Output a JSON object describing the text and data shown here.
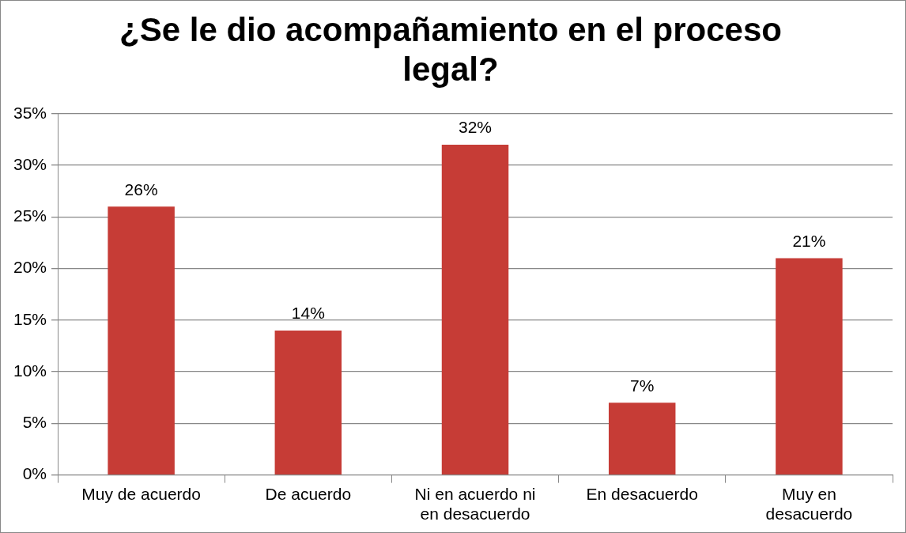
{
  "chart_data": {
    "type": "bar",
    "title": "¿Se le dio acompañamiento en el proceso legal?",
    "categories": [
      "Muy de acuerdo",
      "De acuerdo",
      "Ni en acuerdo ni en desacuerdo",
      "En desacuerdo",
      "Muy en desacuerdo"
    ],
    "values": [
      26,
      14,
      32,
      7,
      21
    ],
    "color": "#c63c36",
    "value_labels": [
      "26%",
      "14%",
      "32%",
      "7%",
      "21%"
    ],
    "ylim": [
      0,
      35
    ],
    "yticks": [
      {
        "value": 0,
        "label": "0%"
      },
      {
        "value": 5,
        "label": "5%"
      },
      {
        "value": 10,
        "label": "10%"
      },
      {
        "value": 15,
        "label": "15%"
      },
      {
        "value": 20,
        "label": "20%"
      },
      {
        "value": 25,
        "label": "25%"
      },
      {
        "value": 30,
        "label": "30%"
      },
      {
        "value": 35,
        "label": "35%"
      }
    ],
    "grid": "y",
    "legend": false
  }
}
